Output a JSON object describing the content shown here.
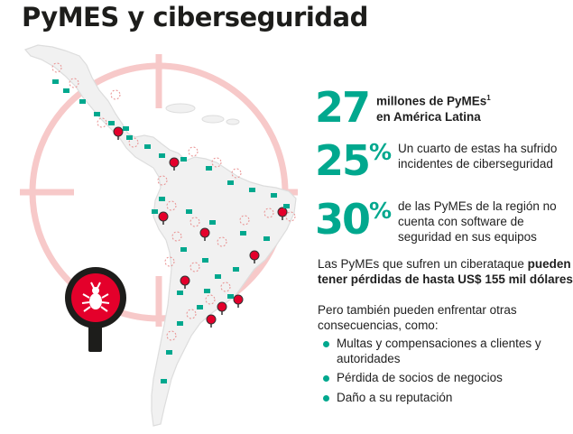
{
  "title": "PyMES y ciberseguridad",
  "colors": {
    "accent": "#00a88e",
    "alert": "#e4002b",
    "crosshair": "#f7c9c9",
    "map": "#f1f1f1"
  },
  "stats": [
    {
      "number": "27",
      "suffix": "",
      "line1": "millones de PyMEs",
      "sup": "1",
      "line2": "en América Latina"
    },
    {
      "number": "25",
      "suffix": "%",
      "line1": "Un cuarto de estas ha sufrido",
      "line2": "incidentes de ciberseguridad"
    },
    {
      "number": "30",
      "suffix": "%",
      "line1": "de las PyMEs de la región no",
      "line2": "cuenta con software de",
      "line3": "seguridad en sus equipos"
    }
  ],
  "losses": {
    "prefix": "Las PyMEs que sufren un ciberataque",
    "bold1": "pueden",
    "bold2": "tener pérdidas de hasta US$ 155 mil dólares"
  },
  "consequences": {
    "line1": "Pero también pueden enfrentar otras",
    "line2": "consecuencias, como:",
    "items": [
      {
        "line1": "Multas y compensaciones a clientes y",
        "line2": "autoridades"
      },
      {
        "line1": "Pérdida de socios de negocios"
      },
      {
        "line1": "Daño a su reputación"
      }
    ]
  },
  "icons": {
    "magnifier": "magnifier-bug-icon",
    "marker": "threat-pin-icon",
    "device": "computer-icon"
  }
}
